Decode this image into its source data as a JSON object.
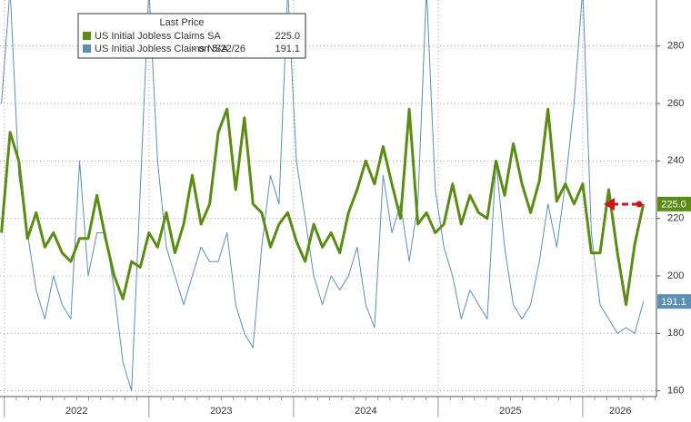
{
  "chart_data": {
    "type": "line",
    "legend_title": "Last Price",
    "x": [
      2021.98,
      2022.04,
      2022.1,
      2022.16,
      2022.22,
      2022.28,
      2022.34,
      2022.4,
      2022.46,
      2022.52,
      2022.58,
      2022.64,
      2022.7,
      2022.76,
      2022.82,
      2022.88,
      2022.94,
      2023.0,
      2023.06,
      2023.12,
      2023.18,
      2023.24,
      2023.3,
      2023.36,
      2023.42,
      2023.48,
      2023.54,
      2023.6,
      2023.66,
      2023.72,
      2023.78,
      2023.84,
      2023.9,
      2023.96,
      2024.02,
      2024.08,
      2024.14,
      2024.2,
      2024.26,
      2024.32,
      2024.38,
      2024.44,
      2024.5,
      2024.56,
      2024.62,
      2024.68,
      2024.74,
      2024.8,
      2024.86,
      2024.92,
      2024.98,
      2025.04,
      2025.1,
      2025.16,
      2025.22,
      2025.28,
      2025.34,
      2025.4,
      2025.46,
      2025.52,
      2025.58,
      2025.64,
      2025.7,
      2025.76,
      2025.82,
      2025.88,
      2025.94,
      2026.0,
      2026.06,
      2026.12,
      2026.18,
      2026.24,
      2026.3,
      2026.36,
      2026.42
    ],
    "series": [
      {
        "name": "US Initial Jobless Claims SA",
        "color": "#5b8c16",
        "width": 3,
        "last_label": "225.0",
        "values": [
          215,
          250,
          240,
          213,
          222,
          210,
          215,
          208,
          205,
          213,
          213,
          228,
          213,
          200,
          192,
          205,
          203,
          215,
          210,
          222,
          208,
          218,
          235,
          218,
          225,
          250,
          258,
          230,
          255,
          225,
          222,
          210,
          218,
          222,
          212,
          205,
          218,
          210,
          215,
          208,
          222,
          230,
          240,
          232,
          245,
          232,
          220,
          258,
          218,
          222,
          215,
          218,
          232,
          218,
          228,
          222,
          220,
          240,
          228,
          246,
          232,
          222,
          233,
          258,
          226,
          232,
          225,
          232,
          208,
          208,
          230,
          208,
          190,
          211,
          225
        ]
      },
      {
        "name": "US Initial Jobless Claims NSA",
        "color": "#5d8fb5",
        "width": 1,
        "last_label": "191.1",
        "legend_note": "- on 5/22/26",
        "values": [
          260,
          300,
          235,
          215,
          195,
          185,
          200,
          190,
          185,
          240,
          200,
          215,
          215,
          195,
          170,
          160,
          230,
          300,
          240,
          210,
          200,
          190,
          200,
          210,
          205,
          205,
          215,
          190,
          180,
          175,
          210,
          235,
          225,
          300,
          240,
          220,
          200,
          190,
          200,
          195,
          200,
          210,
          190,
          182,
          235,
          215,
          225,
          205,
          225,
          300,
          230,
          210,
          200,
          185,
          195,
          190,
          185,
          240,
          210,
          190,
          185,
          190,
          205,
          225,
          210,
          232,
          260,
          300,
          215,
          190,
          185,
          180,
          182,
          180,
          191.1
        ]
      }
    ],
    "xlim": [
      2021.97,
      2026.51
    ],
    "xticks": [
      {
        "value": 2022.5,
        "label": "2022"
      },
      {
        "value": 2023.5,
        "label": "2023"
      },
      {
        "value": 2024.5,
        "label": "2024"
      },
      {
        "value": 2025.5,
        "label": "2025"
      },
      {
        "value": 2026.26,
        "label": "2026"
      }
    ],
    "ylim": [
      158,
      296
    ],
    "yticks": [
      160,
      180,
      200,
      220,
      240,
      260,
      280
    ],
    "grid": true
  }
}
